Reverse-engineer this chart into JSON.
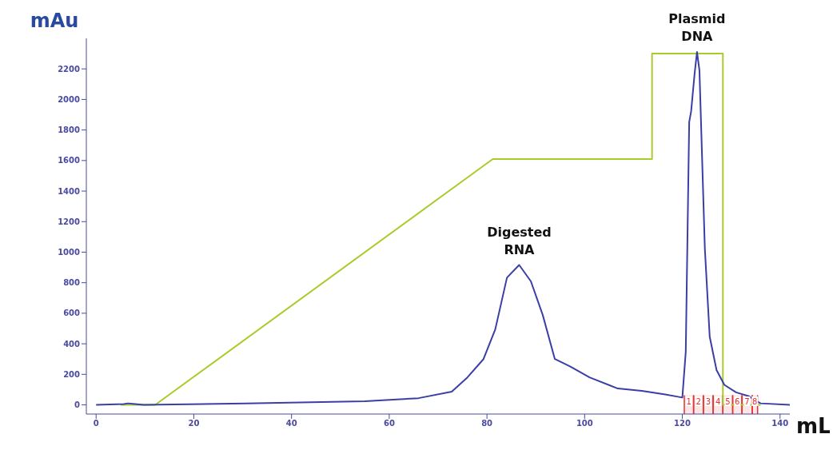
{
  "chart_data": {
    "type": "line",
    "xlabel": "mL",
    "ylabel": "mAu",
    "xlim": [
      -2,
      142
    ],
    "xticks": [
      0,
      20,
      40,
      60,
      80,
      100,
      120,
      140
    ],
    "ylim": [
      -60,
      2400
    ],
    "yticks": [
      0,
      200,
      400,
      600,
      800,
      1000,
      1200,
      1400,
      1600,
      1800,
      2000,
      2200
    ],
    "grid": false,
    "marker": "none",
    "line_style": "solid",
    "series": [
      {
        "color": "#a8cc2a",
        "x": [
          5,
          12.1,
          81.2,
          113.8,
          113.8,
          128.3,
          128.3,
          136
        ],
        "values": [
          0,
          0,
          1610,
          1610,
          2300,
          2300,
          0,
          0
        ]
      },
      {
        "color": "#3a3fa8",
        "x": [
          0,
          5.7,
          6.5,
          8,
          9.7,
          30.7,
          55,
          66,
          72.8,
          76,
          79.3,
          81.7,
          84.1,
          86.6,
          89,
          91.4,
          93.9,
          97,
          101,
          106.8,
          111.7,
          116.5,
          120,
          120.7,
          121.4,
          121.8,
          122.5,
          123,
          123.5,
          124.6,
          125.6,
          127,
          128.6,
          131,
          133.5,
          136,
          142
        ],
        "values": [
          0,
          5,
          10,
          5,
          0,
          10,
          24,
          44,
          87,
          180,
          300,
          494,
          833,
          916,
          809,
          591,
          300,
          252,
          180,
          107,
          92,
          68,
          48,
          349,
          1851,
          1923,
          2166,
          2311,
          2190,
          1027,
          446,
          228,
          131,
          82,
          58,
          10,
          0
        ]
      }
    ],
    "bands": [
      {
        "axis": "x",
        "from": 120.4,
        "to": 122.3,
        "label": "1",
        "color": "#e53030"
      },
      {
        "axis": "x",
        "from": 122.3,
        "to": 124.3,
        "label": "2",
        "color": "#e53030"
      },
      {
        "axis": "x",
        "from": 124.3,
        "to": 126.3,
        "label": "3",
        "color": "#e53030"
      },
      {
        "axis": "x",
        "from": 126.3,
        "to": 128.3,
        "label": "4",
        "color": "#e53030"
      },
      {
        "axis": "x",
        "from": 128.3,
        "to": 130.3,
        "label": "5",
        "color": "#e53030"
      },
      {
        "axis": "x",
        "from": 130.3,
        "to": 132.2,
        "label": "6",
        "color": "#e53030"
      },
      {
        "axis": "x",
        "from": 132.2,
        "to": 134.3,
        "label": "7",
        "color": "#e53030"
      },
      {
        "axis": "x",
        "from": 134.3,
        "to": 135.4,
        "label": "8",
        "color": "#e53030"
      }
    ],
    "annotations": [
      {
        "text": "Digested RNA",
        "x": 86.6,
        "y": 916
      },
      {
        "text": "Plasmid DNA",
        "x": 123,
        "y": 2311
      }
    ]
  }
}
